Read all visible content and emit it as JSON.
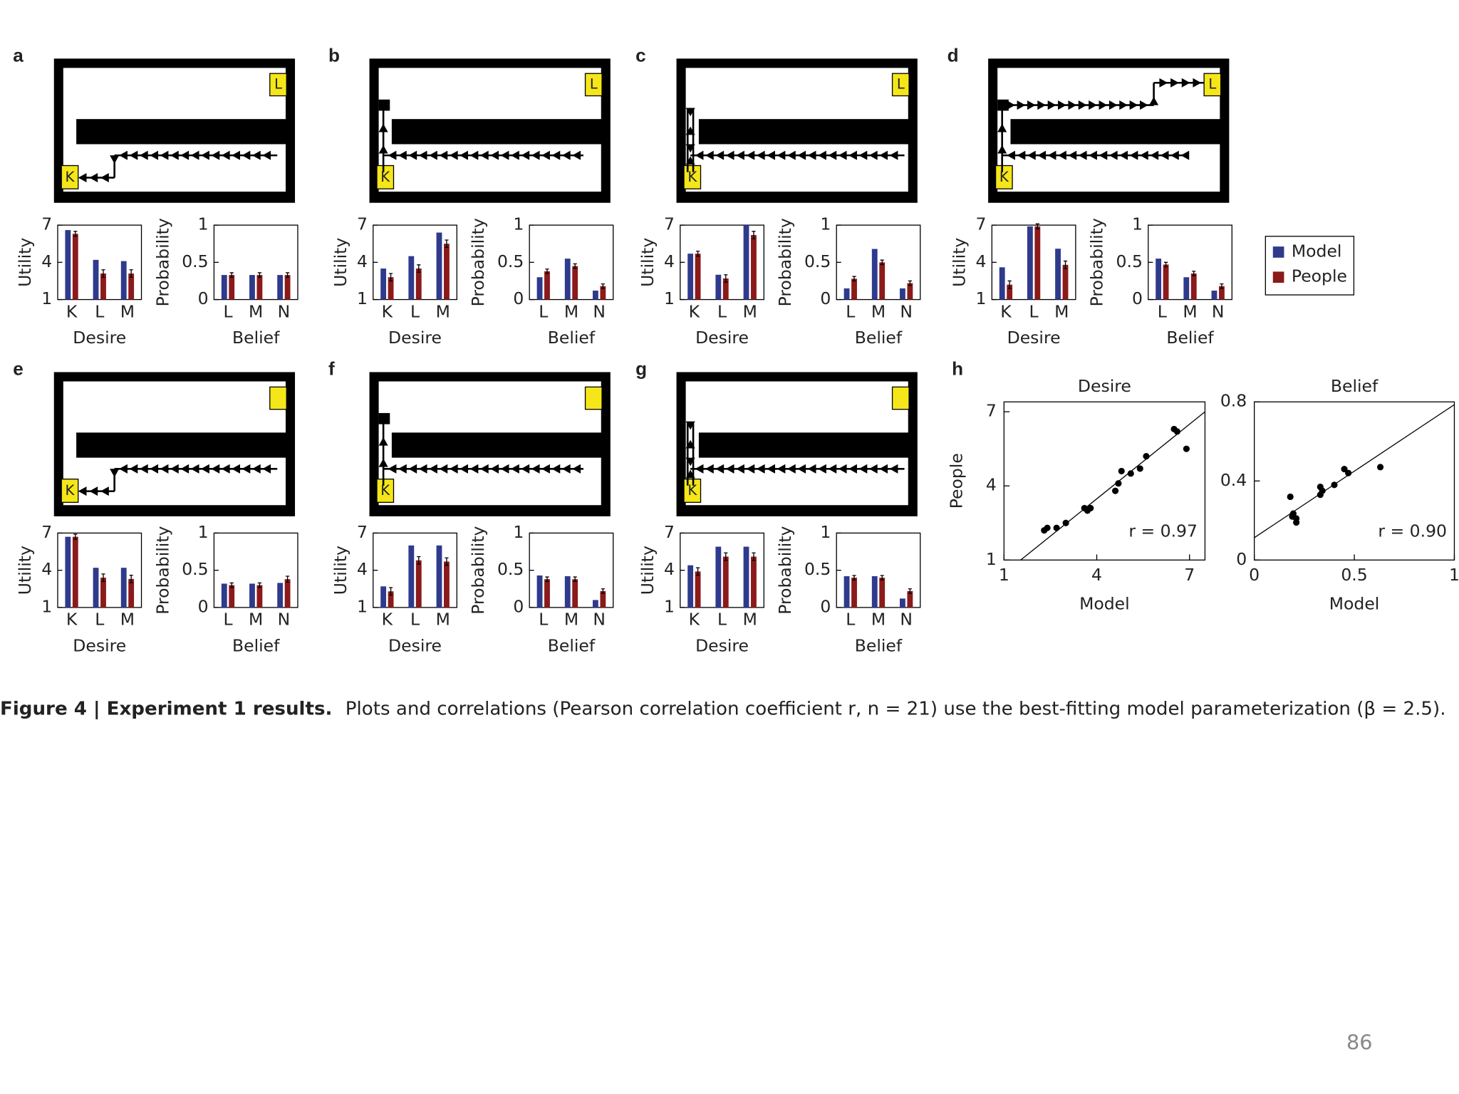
{
  "panels": [
    {
      "letter": "a",
      "goals": [
        "K",
        "L"
      ]
    },
    {
      "letter": "b",
      "goals": [
        "K",
        "L"
      ]
    },
    {
      "letter": "c",
      "goals": [
        "K",
        "L"
      ]
    },
    {
      "letter": "d",
      "goals": [
        "K",
        "L"
      ]
    },
    {
      "letter": "e",
      "goals": [
        "K"
      ]
    },
    {
      "letter": "f",
      "goals": [
        "K"
      ]
    },
    {
      "letter": "g",
      "goals": [
        "K"
      ]
    },
    {
      "letter": "h",
      "goals": []
    }
  ],
  "legend": [
    {
      "name": "Model",
      "color": "#2e3a8c"
    },
    {
      "name": "People",
      "color": "#8b1a1a"
    }
  ],
  "chart_data": [
    {
      "type": "bar",
      "ylabel": "Utility",
      "xlabel": "Desire",
      "categories": [
        "K",
        "L",
        "M"
      ],
      "ylim": [
        1,
        7
      ],
      "yticks": [
        1,
        4,
        7
      ],
      "series": [
        {
          "values": [
            6.6,
            4.2,
            4.1
          ]
        },
        {
          "values": [
            6.3,
            3.1,
            3.1
          ],
          "errors": [
            0.2,
            0.3,
            0.3
          ]
        }
      ]
    },
    {
      "type": "bar",
      "ylabel": "Probability",
      "xlabel": "Belief",
      "categories": [
        "L",
        "M",
        "N"
      ],
      "ylim": [
        0,
        1
      ],
      "yticks": [
        0,
        0.5,
        1
      ],
      "series": [
        {
          "values": [
            0.33,
            0.33,
            0.33
          ]
        },
        {
          "values": [
            0.33,
            0.33,
            0.33
          ],
          "errors": [
            0.03,
            0.03,
            0.03
          ]
        }
      ]
    },
    {
      "type": "bar",
      "ylabel": "Utility",
      "xlabel": "Desire",
      "categories": [
        "K",
        "L",
        "M"
      ],
      "ylim": [
        1,
        7
      ],
      "yticks": [
        1,
        4,
        7
      ],
      "series": [
        {
          "values": [
            3.5,
            4.5,
            6.4
          ]
        },
        {
          "values": [
            2.8,
            3.5,
            5.5
          ],
          "errors": [
            0.3,
            0.3,
            0.3
          ]
        }
      ]
    },
    {
      "type": "bar",
      "ylabel": "Probability",
      "xlabel": "Belief",
      "categories": [
        "L",
        "M",
        "N"
      ],
      "ylim": [
        0,
        1
      ],
      "yticks": [
        0,
        0.5,
        1
      ],
      "series": [
        {
          "values": [
            0.3,
            0.55,
            0.12
          ]
        },
        {
          "values": [
            0.38,
            0.45,
            0.18
          ],
          "errors": [
            0.03,
            0.03,
            0.03
          ]
        }
      ]
    },
    {
      "type": "bar",
      "ylabel": "Utility",
      "xlabel": "Desire",
      "categories": [
        "K",
        "L",
        "M"
      ],
      "ylim": [
        1,
        7
      ],
      "yticks": [
        1,
        4,
        7
      ],
      "series": [
        {
          "values": [
            4.7,
            3.0,
            7.0
          ]
        },
        {
          "values": [
            4.7,
            2.7,
            6.2
          ],
          "errors": [
            0.2,
            0.3,
            0.3
          ]
        }
      ]
    },
    {
      "type": "bar",
      "ylabel": "Probability",
      "xlabel": "Belief",
      "categories": [
        "L",
        "M",
        "N"
      ],
      "ylim": [
        0,
        1
      ],
      "yticks": [
        0,
        0.5,
        1
      ],
      "series": [
        {
          "values": [
            0.15,
            0.68,
            0.15
          ]
        },
        {
          "values": [
            0.28,
            0.5,
            0.22
          ],
          "errors": [
            0.03,
            0.03,
            0.03
          ]
        }
      ]
    },
    {
      "type": "bar",
      "ylabel": "Utility",
      "xlabel": "Desire",
      "categories": [
        "K",
        "L",
        "M"
      ],
      "ylim": [
        1,
        7
      ],
      "yticks": [
        1,
        4,
        7
      ],
      "series": [
        {
          "values": [
            3.6,
            6.9,
            5.1
          ]
        },
        {
          "values": [
            2.2,
            6.9,
            3.8
          ],
          "errors": [
            0.3,
            0.2,
            0.3
          ]
        }
      ]
    },
    {
      "type": "bar",
      "ylabel": "Probability",
      "xlabel": "Belief",
      "categories": [
        "L",
        "M",
        "N"
      ],
      "ylim": [
        0,
        1
      ],
      "yticks": [
        0,
        0.5,
        1
      ],
      "series": [
        {
          "values": [
            0.55,
            0.3,
            0.12
          ]
        },
        {
          "values": [
            0.47,
            0.35,
            0.18
          ],
          "errors": [
            0.03,
            0.03,
            0.03
          ]
        }
      ]
    },
    {
      "type": "bar",
      "ylabel": "Utility",
      "xlabel": "Desire",
      "categories": [
        "K",
        "L",
        "M"
      ],
      "ylim": [
        1,
        7
      ],
      "yticks": [
        1,
        4,
        7
      ],
      "series": [
        {
          "values": [
            6.7,
            4.2,
            4.2
          ]
        },
        {
          "values": [
            6.7,
            3.4,
            3.3
          ],
          "errors": [
            0.2,
            0.3,
            0.3
          ]
        }
      ]
    },
    {
      "type": "bar",
      "ylabel": "Probability",
      "xlabel": "Belief",
      "categories": [
        "L",
        "M",
        "N"
      ],
      "ylim": [
        0,
        1
      ],
      "yticks": [
        0,
        0.5,
        1
      ],
      "series": [
        {
          "values": [
            0.32,
            0.32,
            0.33
          ]
        },
        {
          "values": [
            0.3,
            0.3,
            0.38
          ],
          "errors": [
            0.03,
            0.03,
            0.04
          ]
        }
      ]
    },
    {
      "type": "bar",
      "ylabel": "Utility",
      "xlabel": "Desire",
      "categories": [
        "K",
        "L",
        "M"
      ],
      "ylim": [
        1,
        7
      ],
      "yticks": [
        1,
        4,
        7
      ],
      "series": [
        {
          "values": [
            2.7,
            6.0,
            6.0
          ]
        },
        {
          "values": [
            2.3,
            4.8,
            4.7
          ],
          "errors": [
            0.3,
            0.3,
            0.3
          ]
        }
      ]
    },
    {
      "type": "bar",
      "ylabel": "Probability",
      "xlabel": "Belief",
      "categories": [
        "L",
        "M",
        "N"
      ],
      "ylim": [
        0,
        1
      ],
      "yticks": [
        0,
        0.5,
        1
      ],
      "series": [
        {
          "values": [
            0.43,
            0.42,
            0.1
          ]
        },
        {
          "values": [
            0.38,
            0.38,
            0.22
          ],
          "errors": [
            0.03,
            0.03,
            0.03
          ]
        }
      ]
    },
    {
      "type": "bar",
      "ylabel": "Utility",
      "xlabel": "Desire",
      "categories": [
        "K",
        "L",
        "M"
      ],
      "ylim": [
        1,
        7
      ],
      "yticks": [
        1,
        4,
        7
      ],
      "series": [
        {
          "values": [
            4.4,
            5.9,
            5.9
          ]
        },
        {
          "values": [
            3.9,
            5.1,
            5.1
          ],
          "errors": [
            0.3,
            0.3,
            0.3
          ]
        }
      ]
    },
    {
      "type": "bar",
      "ylabel": "Probability",
      "xlabel": "Belief",
      "categories": [
        "L",
        "M",
        "N"
      ],
      "ylim": [
        0,
        1
      ],
      "yticks": [
        0,
        0.5,
        1
      ],
      "series": [
        {
          "values": [
            0.42,
            0.42,
            0.12
          ]
        },
        {
          "values": [
            0.4,
            0.4,
            0.22
          ],
          "errors": [
            0.03,
            0.03,
            0.03
          ]
        }
      ]
    },
    {
      "type": "scatter",
      "title": "Desire",
      "xlabel": "Model",
      "ylabel": "People",
      "annotation": "r = 0.97",
      "xlim": [
        1,
        7.5
      ],
      "ylim": [
        1,
        7.4
      ],
      "xticks": [
        1,
        4,
        7
      ],
      "yticks": [
        1,
        4,
        7
      ],
      "x": [
        2.3,
        2.4,
        2.7,
        3.0,
        3.6,
        3.7,
        3.8,
        4.6,
        4.7,
        4.8,
        5.1,
        5.4,
        5.6,
        6.5,
        6.6,
        6.9
      ],
      "y": [
        2.2,
        2.3,
        2.3,
        2.5,
        3.1,
        3.0,
        3.1,
        3.8,
        4.1,
        4.6,
        4.5,
        4.7,
        5.2,
        6.3,
        6.2,
        5.5
      ],
      "fit_line": {
        "x": [
          1.54,
          7.5
        ],
        "y": [
          1,
          7
        ]
      }
    },
    {
      "type": "scatter",
      "title": "Belief",
      "xlabel": "Model",
      "annotation": "r = 0.90",
      "xlim": [
        0,
        1
      ],
      "ylim": [
        0,
        0.8
      ],
      "xticks": [
        0,
        0.5,
        1
      ],
      "yticks": [
        0,
        0.4,
        0.8
      ],
      "x": [
        0.18,
        0.195,
        0.21,
        0.19,
        0.33,
        0.33,
        0.34,
        0.4,
        0.45,
        0.47,
        0.63,
        0.21
      ],
      "y": [
        0.32,
        0.235,
        0.21,
        0.22,
        0.37,
        0.33,
        0.35,
        0.38,
        0.46,
        0.44,
        0.47,
        0.19
      ],
      "fit_line": {
        "x": [
          0,
          1
        ],
        "y": [
          0.113,
          0.786
        ]
      }
    }
  ],
  "caption": {
    "label": "Figure 4 | Experiment 1 results.",
    "text": "Plots and correlations (Pearson correlation coefficient r, n = 21) use the best-fitting model parameterization (β = 2.5)."
  },
  "page_number": "86"
}
